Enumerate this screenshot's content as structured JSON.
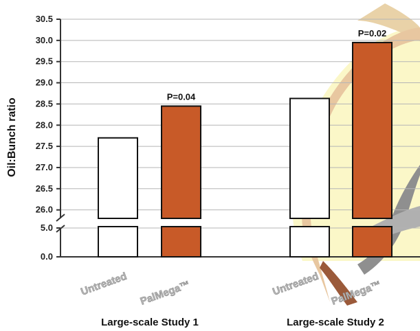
{
  "chart_data": {
    "type": "bar",
    "ylabel": "Oil:Bunch ratio",
    "ylim": [
      0,
      30.5
    ],
    "y_axis_break": [
      5.0,
      25.8
    ],
    "yticks_upper": [
      "26.0",
      "26.5",
      "27.0",
      "27.5",
      "28.0",
      "28.5",
      "29.0",
      "29.5",
      "30.0",
      "30.5"
    ],
    "yticks_lower": [
      "0.0",
      "5.0"
    ],
    "grid": true,
    "categories": [
      "Untreated",
      "PalMega™"
    ],
    "groups": [
      {
        "label": "Large-scale Study 1",
        "p_value": "P=0.04",
        "bars": [
          {
            "category": "Untreated",
            "value": 27.7,
            "color": "#ffffff"
          },
          {
            "category": "PalMega™",
            "value": 28.45,
            "color": "#c85a28"
          }
        ]
      },
      {
        "label": "Large-scale Study 2",
        "p_value": "P=0.02",
        "bars": [
          {
            "category": "Untreated",
            "value": 28.63,
            "color": "#ffffff"
          },
          {
            "category": "PalMega™",
            "value": 29.95,
            "color": "#c85a28"
          }
        ]
      }
    ],
    "background_image": "oil-palm-fruit-illustration"
  }
}
